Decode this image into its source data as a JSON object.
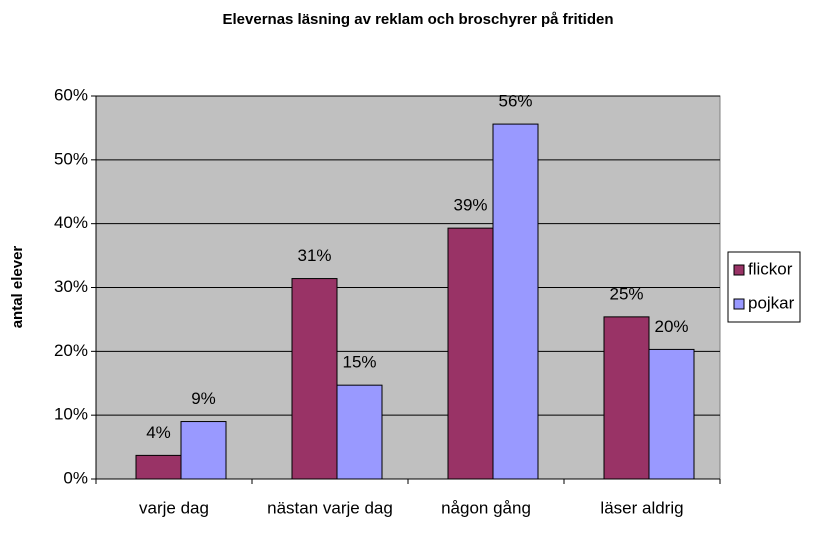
{
  "chart_data": {
    "type": "bar",
    "title": "Elevernas läsning av reklam och broschyrer på fritiden",
    "y_label": "antal elever",
    "categories": [
      "varje dag",
      "nästan varje dag",
      "någon gång",
      "läser aldrig"
    ],
    "series": [
      {
        "name": "flickor",
        "color": "#993366",
        "values": [
          3.7,
          31.4,
          39.3,
          25.4
        ],
        "value_labels": [
          "4%",
          "31%",
          "39%",
          "25%"
        ]
      },
      {
        "name": "pojkar",
        "color": "#9999ff",
        "values": [
          9.0,
          14.7,
          55.6,
          20.3
        ],
        "value_labels": [
          "9%",
          "15%",
          "56%",
          "20%"
        ]
      }
    ],
    "ylim": [
      0,
      60
    ],
    "yticks": [
      {
        "value": 0,
        "label": "0%"
      },
      {
        "value": 10,
        "label": "10%"
      },
      {
        "value": 20,
        "label": "20%"
      },
      {
        "value": 30,
        "label": "30%"
      },
      {
        "value": 40,
        "label": "40%"
      },
      {
        "value": 50,
        "label": "50%"
      },
      {
        "value": 60,
        "label": "60%"
      }
    ],
    "grid": true,
    "legend": "right",
    "plot_background": "#c0c0c0"
  }
}
